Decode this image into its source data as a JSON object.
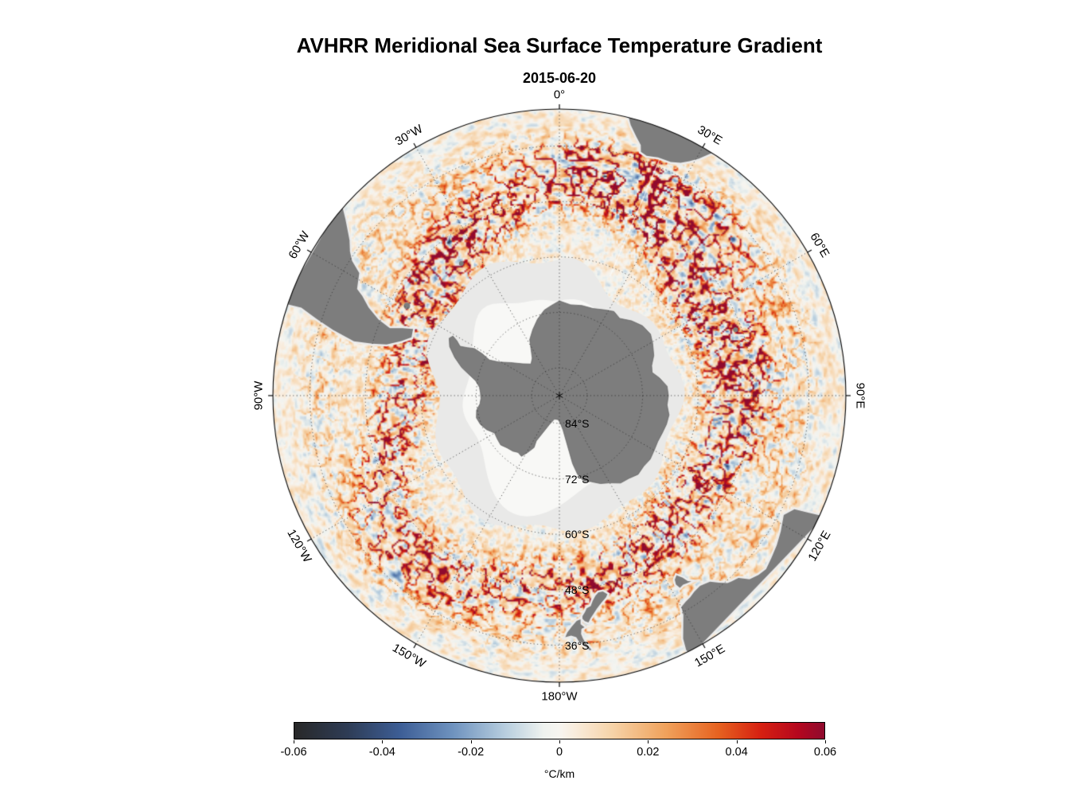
{
  "title": "AVHRR Meridional Sea Surface Temperature Gradient",
  "subtitle": "2015-06-20",
  "chart_data": {
    "type": "heatmap",
    "projection": "south-polar-stereographic",
    "instrument": "AVHRR",
    "variable": "Meridional Sea Surface Temperature Gradient",
    "date": "2015-06-20",
    "units": "°C/km",
    "value_range": [
      -0.06,
      0.06
    ],
    "map_extent_lat": [
      -90,
      -28
    ],
    "grid": {
      "latitude_circles": [
        -36,
        -48,
        -60,
        -72,
        -84
      ],
      "longitude_step_deg": 30,
      "style": "dotted"
    },
    "longitude_labels": [
      {
        "lon": 0,
        "label": "0°"
      },
      {
        "lon": 30,
        "label": "30°E"
      },
      {
        "lon": 60,
        "label": "60°E"
      },
      {
        "lon": 90,
        "label": "90°E"
      },
      {
        "lon": 120,
        "label": "120°E"
      },
      {
        "lon": 150,
        "label": "150°E"
      },
      {
        "lon": 180,
        "label": "180°W"
      },
      {
        "lon": -150,
        "label": "150°W"
      },
      {
        "lon": -120,
        "label": "120°W"
      },
      {
        "lon": -90,
        "label": "90°W"
      },
      {
        "lon": -60,
        "label": "60°W"
      },
      {
        "lon": -30,
        "label": "30°W"
      }
    ],
    "latitude_labels": [
      {
        "lat": -84,
        "label": "84°S"
      },
      {
        "lat": -72,
        "label": "72°S"
      },
      {
        "lat": -60,
        "label": "60°S"
      },
      {
        "lat": -48,
        "label": "48°S"
      },
      {
        "lat": -36,
        "label": "36°S"
      }
    ],
    "colorbar": {
      "orientation": "horizontal",
      "label": "°C/km",
      "ticks": [
        -0.06,
        -0.04,
        -0.02,
        0,
        0.02,
        0.04,
        0.06
      ],
      "tick_labels": [
        "-0.06",
        "-0.04",
        "-0.02",
        "0",
        "0.02",
        "0.04",
        "0.06"
      ],
      "stops": [
        {
          "t": 0.0,
          "color": "#282828"
        },
        {
          "t": 0.1,
          "color": "#2e3c55"
        },
        {
          "t": 0.2,
          "color": "#3d5e96"
        },
        {
          "t": 0.3,
          "color": "#6f93bf"
        },
        {
          "t": 0.4,
          "color": "#b9cfdf"
        },
        {
          "t": 0.47,
          "color": "#eef2ef"
        },
        {
          "t": 0.5,
          "color": "#f7f5f0"
        },
        {
          "t": 0.53,
          "color": "#f9ecdc"
        },
        {
          "t": 0.6,
          "color": "#f6d3a8"
        },
        {
          "t": 0.7,
          "color": "#f0a25c"
        },
        {
          "t": 0.8,
          "color": "#e66220"
        },
        {
          "t": 0.88,
          "color": "#d62011"
        },
        {
          "t": 0.95,
          "color": "#b5071e"
        },
        {
          "t": 1.0,
          "color": "#8f0a2e"
        }
      ]
    },
    "land_color": "#7d7d7d",
    "sea_ice_color": "#e9e9e8",
    "land_features": [
      "Antarctica",
      "South America",
      "Africa",
      "Australia",
      "Tasmania",
      "New Zealand",
      "Falkland Islands",
      "South Georgia",
      "Kerguelen"
    ]
  }
}
